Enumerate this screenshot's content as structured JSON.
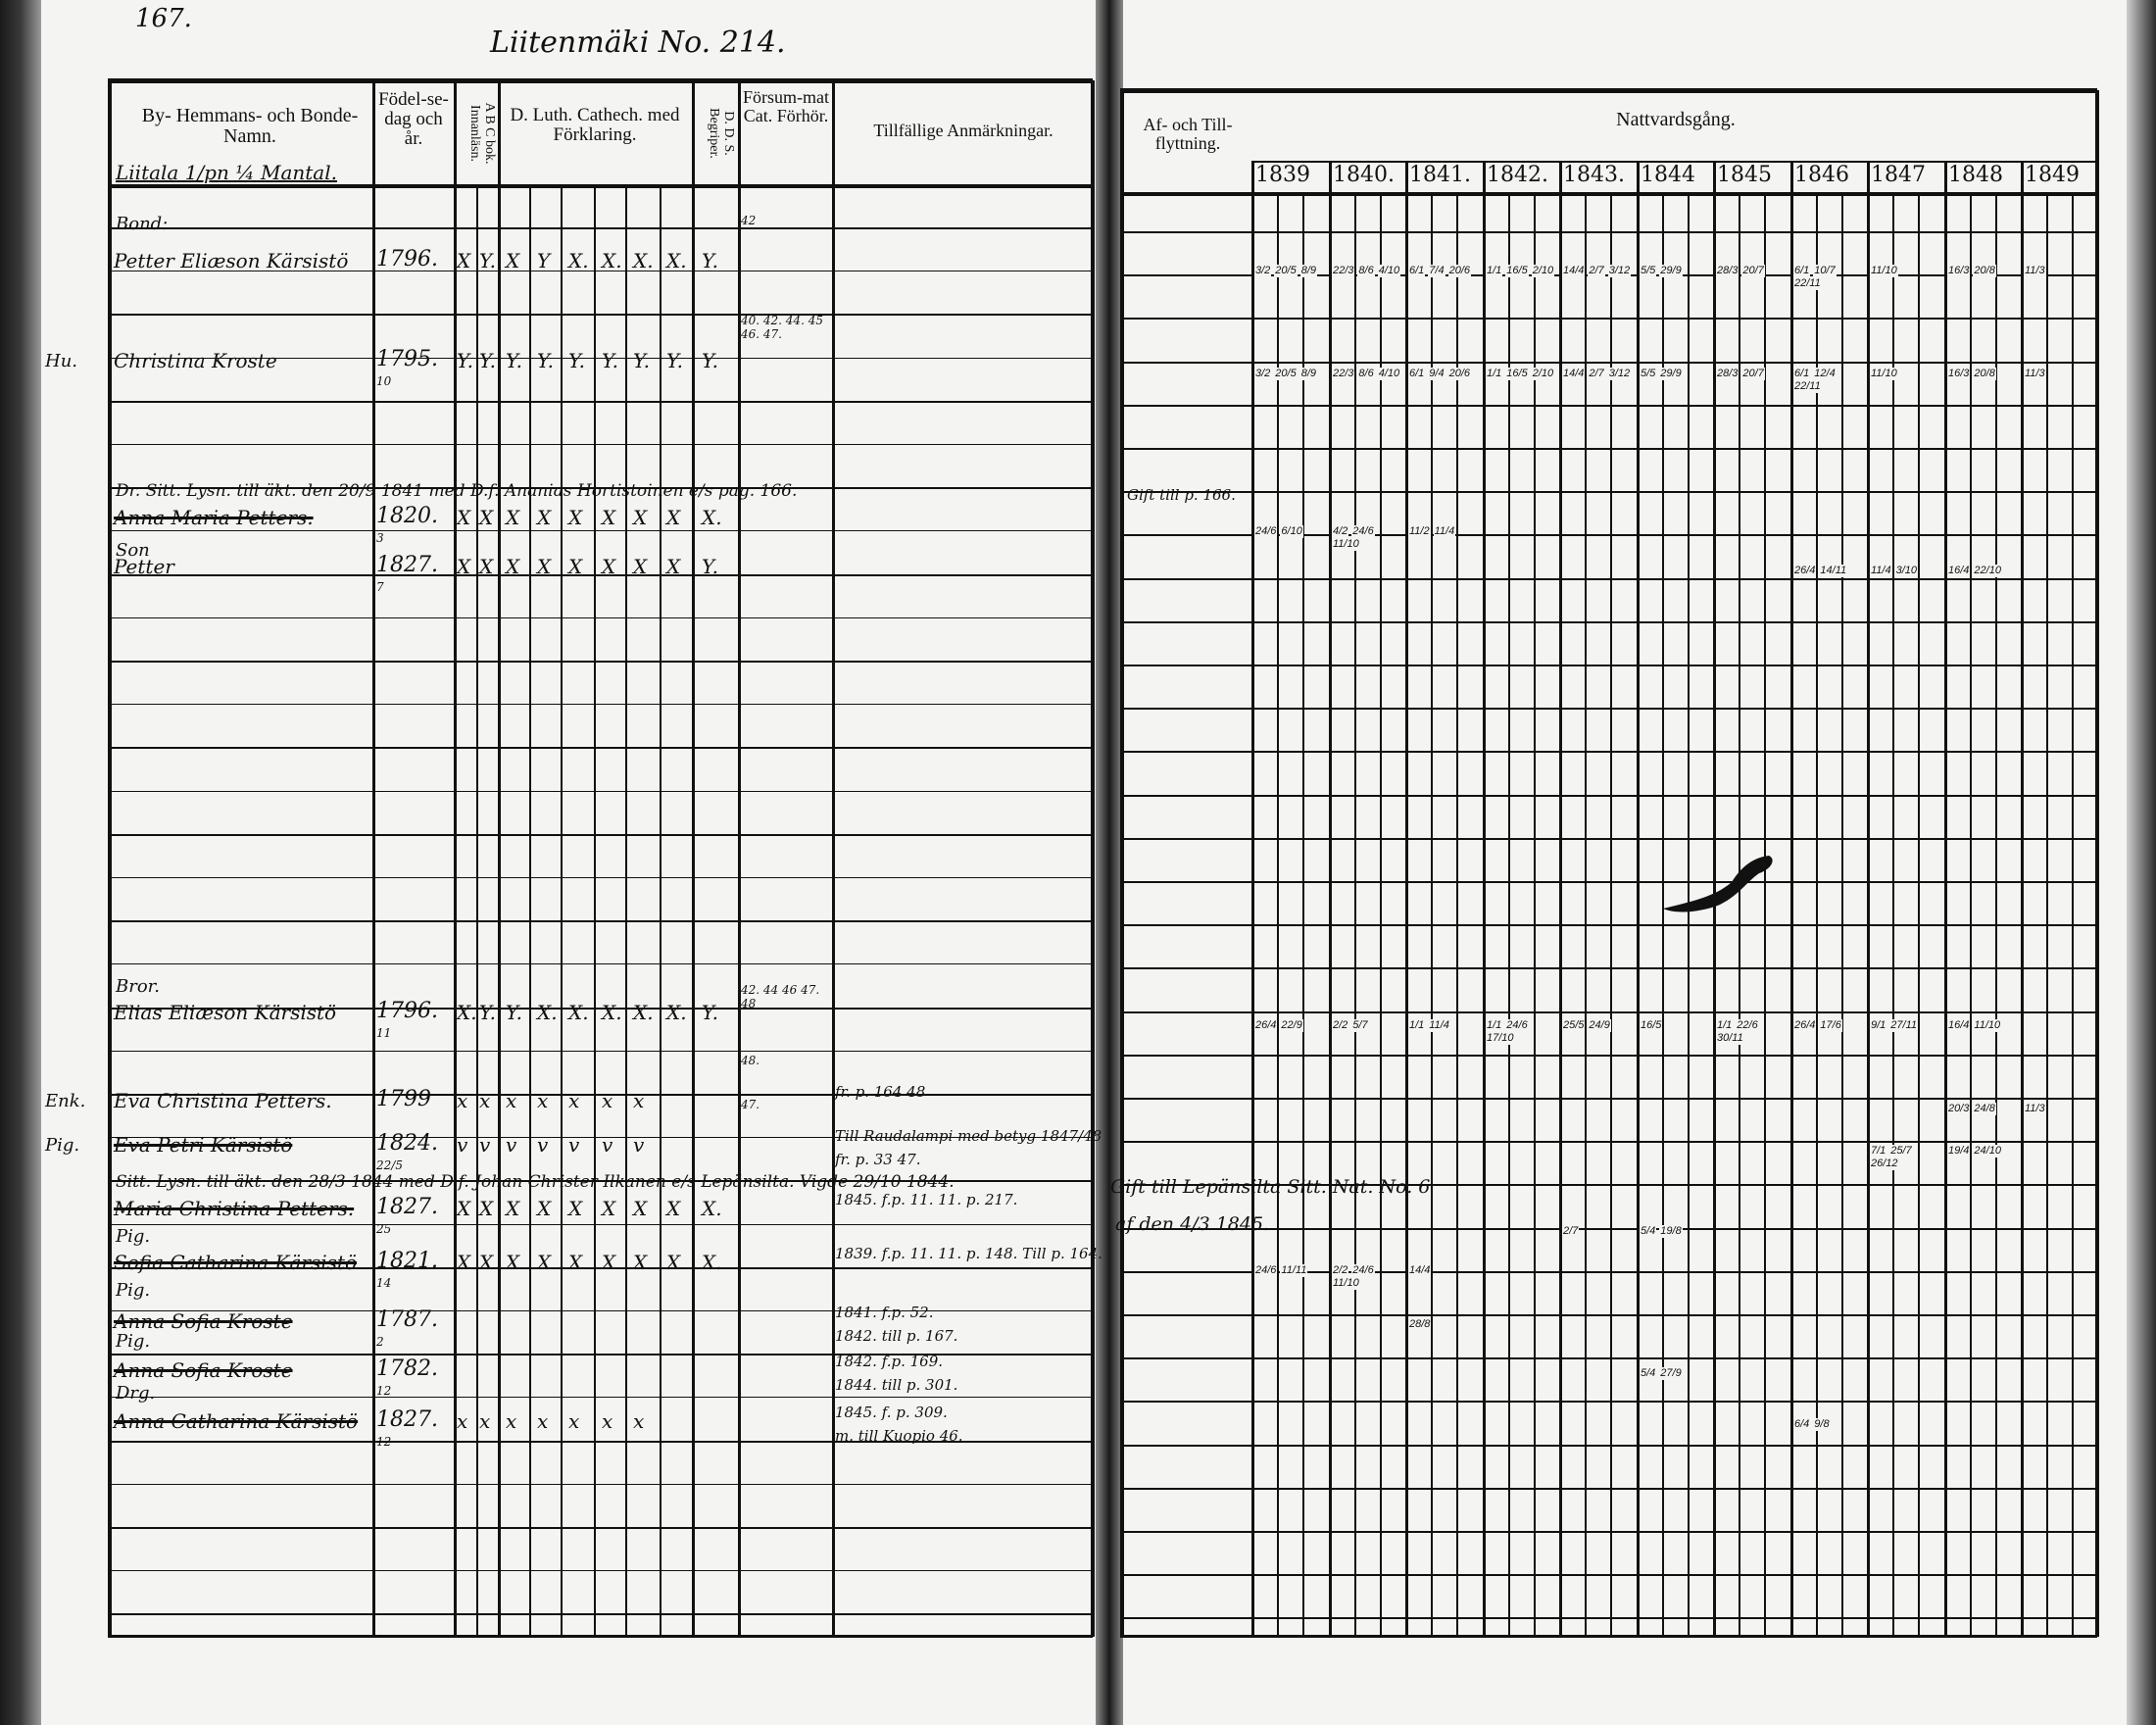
{
  "left_page": {
    "page_number": "167.",
    "farm_title": "Liitenmäki No. 214.",
    "headers": {
      "name": "By- Hemmans- och Bonde-Namn.",
      "birth": "Födel-se-dag och år.",
      "abc": "A B C bok. Innanläsn.",
      "catechism": "D. Luth. Cathech. med Förklaring.",
      "dds": "D. D. S. Begriper.",
      "missed": "Försum-mat Cat. Förhör.",
      "remarks": "Tillfällige Anmärkningar."
    },
    "homestead": "Liitala 1/pn ¼ Mantal.",
    "entries": [
      {
        "role": "Bond:",
        "prefix": "",
        "name": "Petter Eliæson Kärsistö",
        "struck": false,
        "birth": "1796.",
        "birth_note": "",
        "marks": [
          "X",
          "Y.",
          "X",
          "Y",
          "X.",
          "X.",
          "X.",
          "X.",
          "Y."
        ],
        "missed": "42",
        "remarks": []
      },
      {
        "role": "",
        "prefix": "Hu.",
        "name": "Christina Kroste",
        "struck": false,
        "birth": "1795.",
        "birth_note": "10",
        "marks": [
          "Y.",
          "Y.",
          "Y.",
          "Y.",
          "Y.",
          "Y.",
          "Y.",
          "Y.",
          "Y."
        ],
        "missed": "40. 42. 44. 45 46. 47.",
        "remarks": []
      },
      {
        "role": "Dr. Sitt. Lysn. till äkt. den 20/9 1841 med D.f. Ananias Hortistoinen e/s pag. 166.",
        "prefix": "",
        "name": "Anna Maria Petters.",
        "struck": true,
        "birth": "1820.",
        "birth_note": "3",
        "marks": [
          "X",
          "X",
          "X",
          "X",
          "X",
          "X",
          "X",
          "X",
          "X."
        ],
        "missed": "",
        "remarks": []
      },
      {
        "role": "Son",
        "prefix": "",
        "name": "Petter",
        "struck": false,
        "birth": "1827.",
        "birth_note": "7",
        "marks": [
          "X",
          "X",
          "X",
          "X",
          "X",
          "X",
          "X",
          "X",
          "Y."
        ],
        "missed": "",
        "remarks": []
      },
      {
        "role": "Bror.",
        "prefix": "",
        "name": "Elias Eliæson Kärsistö",
        "struck": false,
        "birth": "1796.",
        "birth_note": "11",
        "marks": [
          "X.",
          "Y.",
          "Y.",
          "X.",
          "X.",
          "X.",
          "X.",
          "X.",
          "Y."
        ],
        "missed": "42. 44 46 47. 48",
        "remarks": []
      },
      {
        "role": "",
        "prefix": "Enk.",
        "name": "Eva Christina Petters.",
        "struck": false,
        "birth": "1799",
        "birth_note": "",
        "marks": [
          "x",
          "x",
          "x",
          "x",
          "x",
          "x",
          "x",
          "",
          ""
        ],
        "missed": "48.",
        "remarks": [
          "fr. p. 164 48"
        ]
      },
      {
        "role": "",
        "prefix": "Pig.",
        "name": "Eva Petri Kärsistö",
        "struck": true,
        "birth": "1824.",
        "birth_note": "22/5",
        "marks": [
          "v",
          "v",
          "v",
          "v",
          "v",
          "v",
          "v",
          "",
          ""
        ],
        "missed": "47.",
        "remarks": [
          "Till Raudalampi med betyg 1847/48",
          "fr. p. 33 47."
        ]
      },
      {
        "role": "Sitt. Lysn. till äkt. den 28/3 1844 med D.f. Johan Christer Ilkanen e/s Lepänsilta. Vigde 29/10 1844.",
        "prefix": "",
        "name": "Maria Christina Petters.",
        "struck": true,
        "birth": "1827.",
        "birth_note": "25",
        "marks": [
          "X",
          "X",
          "X",
          "X",
          "X",
          "X",
          "X",
          "X",
          "X."
        ],
        "missed": "",
        "remarks": [
          "1845. f.p. 11. 11. p. 217."
        ]
      },
      {
        "role": "Pig.",
        "prefix": "",
        "name": "Sofia Catharina Kärsistö",
        "struck": true,
        "birth": "1821.",
        "birth_note": "14",
        "marks": [
          "X",
          "X",
          "X",
          "X",
          "X",
          "X",
          "X",
          "X",
          "X."
        ],
        "missed": "",
        "remarks": [
          "1839. f.p. 11. 11. p. 148. Till p. 164."
        ]
      },
      {
        "role": "Pig.",
        "prefix": "",
        "name": "Anna Sofia Kroste",
        "struck": true,
        "birth": "1787.",
        "birth_note": "2",
        "marks": [],
        "missed": "",
        "remarks": [
          "1841. f.p. 52.",
          "1842. till p. 167."
        ]
      },
      {
        "role": "Pig.",
        "prefix": "",
        "name": "Anna Sofia Kroste",
        "struck": true,
        "birth": "1782.",
        "birth_note": "12",
        "marks": [],
        "missed": "",
        "remarks": [
          "1842. f.p. 169.",
          "1844. till p. 301."
        ]
      },
      {
        "role": "Drg.",
        "prefix": "",
        "name": "Anna Catharina Kärsistö",
        "struck": true,
        "birth": "1827.",
        "birth_note": "12",
        "marks": [
          "x",
          "x",
          "x",
          "x",
          "x",
          "x",
          "x",
          "",
          ""
        ],
        "missed": "",
        "remarks": [
          "1845. f. p. 309.",
          "m. till Kuopio 46."
        ]
      }
    ]
  },
  "right_page": {
    "headers": {
      "moves": "Af- och Till-flyttning.",
      "communion": "Nattvardsgång."
    },
    "years": [
      "1839",
      "1840.",
      "1841.",
      "1842.",
      "1843.",
      "1844",
      "1845",
      "1846",
      "1847",
      "1848",
      "1849"
    ],
    "moves": [
      {
        "text": "Gift till p. 166."
      },
      {
        "text": "Gift till Lepänsilta Sitt. Nat. No. 6",
        "text2": "af den 4/3 1845."
      }
    ],
    "communion_rows": [
      [
        [
          "3/2",
          "20/5",
          "8/9"
        ],
        [
          "22/3",
          "8/6",
          "4/10"
        ],
        [
          "6/1",
          "7/4",
          "20/6"
        ],
        [
          "1/1",
          "16/5",
          "2/10"
        ],
        [
          "14/4",
          "2/7",
          "3/12"
        ],
        [
          "5/5",
          "29/9"
        ],
        [
          "28/3",
          "20/7"
        ],
        [
          "6/1",
          "10/7",
          "22/11"
        ],
        [
          "11/10"
        ],
        [
          "16/3",
          "20/8"
        ],
        [
          "11/3"
        ]
      ],
      [
        [
          "3/2",
          "20/5",
          "8/9"
        ],
        [
          "22/3",
          "8/6",
          "4/10"
        ],
        [
          "6/1",
          "9/4",
          "20/6"
        ],
        [
          "1/1",
          "16/5",
          "2/10"
        ],
        [
          "14/4",
          "2/7",
          "3/12"
        ],
        [
          "5/5",
          "29/9"
        ],
        [
          "28/3",
          "20/7"
        ],
        [
          "6/1",
          "12/4",
          "22/11"
        ],
        [
          "11/10"
        ],
        [
          "16/3",
          "20/8"
        ],
        [
          "11/3"
        ]
      ],
      [
        [
          "24/6",
          "6/10"
        ],
        [
          "4/2",
          "24/6",
          "11/10"
        ],
        [
          "11/2",
          "11/4"
        ],
        [],
        [],
        [],
        [],
        [],
        [],
        [],
        []
      ],
      [
        [],
        [],
        [],
        [],
        [],
        [],
        [],
        [
          "26/4",
          "14/11"
        ],
        [
          "11/4",
          "3/10"
        ],
        [
          "16/4",
          "22/10"
        ],
        []
      ],
      [
        [
          "26/4",
          "22/9"
        ],
        [
          "2/2",
          "5/7"
        ],
        [
          "1/1",
          "11/4"
        ],
        [
          "1/1",
          "24/6",
          "17/10"
        ],
        [
          "25/5",
          "24/9"
        ],
        [
          "16/5"
        ],
        [
          "1/1",
          "22/6",
          "30/11"
        ],
        [
          "26/4",
          "17/6"
        ],
        [
          "9/1",
          "27/11"
        ],
        [
          "16/4",
          "11/10"
        ],
        []
      ],
      [
        [],
        [],
        [],
        [],
        [],
        [],
        [],
        [],
        [],
        [
          "20/3",
          "24/8"
        ],
        [
          "11/3"
        ]
      ],
      [
        [],
        [],
        [],
        [],
        [],
        [],
        [],
        [],
        [
          "7/1",
          "25/7",
          "26/12"
        ],
        [
          "19/4",
          "24/10"
        ],
        []
      ],
      [
        [],
        [],
        [],
        [],
        [
          "2/7"
        ],
        [
          "5/4",
          "19/8"
        ],
        [],
        [],
        [],
        [],
        []
      ],
      [
        [
          "24/6",
          "11/11"
        ],
        [
          "2/2",
          "24/6",
          "11/10"
        ],
        [
          "14/4"
        ],
        [],
        [],
        [],
        [],
        [],
        [],
        [],
        []
      ],
      [
        [],
        [],
        [
          "28/8"
        ],
        [],
        [],
        [],
        [],
        [],
        [],
        [],
        []
      ],
      [
        [],
        [],
        [],
        [],
        [],
        [
          "5/4",
          "27/9"
        ],
        [],
        [],
        [],
        [],
        []
      ],
      [
        [],
        [],
        [],
        [],
        [],
        [],
        [],
        [
          "6/4",
          "9/8"
        ],
        [],
        [],
        []
      ]
    ]
  },
  "colors": {
    "paper": "#f4f4f2",
    "ink": "#111111",
    "scan_border": "#1a1a1a"
  }
}
